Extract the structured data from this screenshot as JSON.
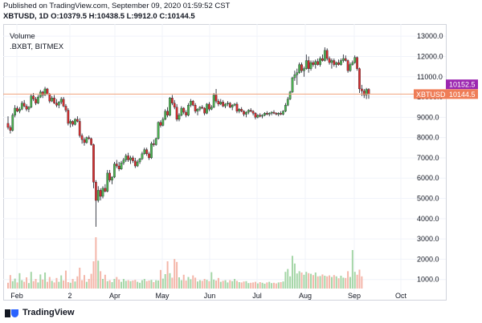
{
  "header": {
    "published": "Published on TradingView.com, September 09, 2020 01:59:52 CST",
    "symbol": "XBTUSD, 1D",
    "ohlc": "O:10379.5 H:10438.5 L:9912.0 C:10144.5"
  },
  "legend": {
    "volume": "Volume",
    "bxbt": ".BXBT, BITMEX"
  },
  "footer": {
    "brand": "TradingView"
  },
  "colors": {
    "up": "#26a69a",
    "down": "#ef5350",
    "candle_up": "#4caf50",
    "candle_down": "#d32f2f",
    "wick": "#131722",
    "price_line": "#f0a37e",
    "xbt_label": "#ef7d57",
    "bxbt_label": "#9c27b0"
  },
  "chart_data": {
    "type": "candlestick",
    "x_ticks": [
      "Feb",
      "2",
      "Apr",
      "May",
      "Jun",
      "Jul",
      "Aug",
      "Sep",
      "Oct"
    ],
    "y_ticks": [
      1000,
      2000,
      3000,
      4000,
      5000,
      6000,
      7000,
      8000,
      9000,
      10000,
      11000,
      12000,
      13000
    ],
    "y_tick_labels": [
      "1000.0",
      "2000.0",
      "3000.0",
      "4000.0",
      "5000.0",
      "6000.0",
      "7000.0",
      "8000.0",
      "9000.0",
      "10000.0",
      "11000.0",
      "12000.0",
      "13000.0"
    ],
    "ylim": [
      0,
      13600
    ],
    "xbtusd_label": "XBTUSD",
    "xbtusd_value": "10144.5",
    "bxbt_value": "10152.5",
    "last_price": 10144.5,
    "bxbt_price": 10152.5,
    "ohlc_series": [
      [
        8700,
        9050,
        8400,
        8500
      ],
      [
        8500,
        8600,
        8200,
        8350
      ],
      [
        8350,
        9200,
        8300,
        9100
      ],
      [
        9100,
        9600,
        9000,
        9450
      ],
      [
        9450,
        9550,
        9250,
        9300
      ],
      [
        9300,
        9500,
        9200,
        9400
      ],
      [
        9400,
        9800,
        9350,
        9700
      ],
      [
        9700,
        9850,
        9500,
        9550
      ],
      [
        9550,
        9650,
        9300,
        9400
      ],
      [
        9400,
        9550,
        9250,
        9500
      ],
      [
        9500,
        10150,
        9450,
        10050
      ],
      [
        10050,
        10200,
        9800,
        9900
      ],
      [
        9900,
        10000,
        9600,
        9700
      ],
      [
        9700,
        10100,
        9650,
        10000
      ],
      [
        10000,
        10350,
        9950,
        10250
      ],
      [
        10250,
        10300,
        9950,
        10100
      ],
      [
        10100,
        10500,
        10050,
        10400
      ],
      [
        10400,
        10450,
        10100,
        10150
      ],
      [
        10150,
        10200,
        9700,
        9800
      ],
      [
        9800,
        10050,
        9750,
        9950
      ],
      [
        9950,
        10100,
        9650,
        9700
      ],
      [
        9700,
        9900,
        9500,
        9600
      ],
      [
        9600,
        9800,
        9450,
        9750
      ],
      [
        9750,
        10000,
        9650,
        9900
      ],
      [
        9900,
        10000,
        9500,
        9550
      ],
      [
        9550,
        9650,
        9250,
        9350
      ],
      [
        9350,
        9450,
        8600,
        8700
      ],
      [
        8700,
        8900,
        8500,
        8800
      ],
      [
        8800,
        8850,
        8550,
        8650
      ],
      [
        8650,
        8950,
        8600,
        8900
      ],
      [
        8900,
        9050,
        8750,
        8800
      ],
      [
        8800,
        8950,
        8000,
        8100
      ],
      [
        8100,
        8200,
        7700,
        7900
      ],
      [
        7900,
        8000,
        7600,
        7750
      ],
      [
        7750,
        8050,
        7700,
        8000
      ],
      [
        8000,
        8100,
        7900,
        7950
      ],
      [
        7950,
        8000,
        7600,
        7650
      ],
      [
        7650,
        7700,
        5500,
        5800
      ],
      [
        5800,
        5900,
        3600,
        4900
      ],
      [
        4900,
        5600,
        4800,
        5400
      ],
      [
        5400,
        5500,
        4900,
        5100
      ],
      [
        5100,
        5600,
        5000,
        5500
      ],
      [
        5500,
        5700,
        5300,
        5350
      ],
      [
        5350,
        6400,
        5300,
        6250
      ],
      [
        6250,
        6400,
        5800,
        5900
      ],
      [
        5900,
        6100,
        5700,
        6050
      ],
      [
        6050,
        6800,
        6000,
        6700
      ],
      [
        6700,
        6900,
        6500,
        6600
      ],
      [
        6600,
        6800,
        6350,
        6450
      ],
      [
        6450,
        6850,
        6400,
        6750
      ],
      [
        6750,
        7000,
        6650,
        6900
      ],
      [
        6900,
        7200,
        6800,
        7100
      ],
      [
        7100,
        7250,
        6800,
        6900
      ],
      [
        6900,
        7100,
        6700,
        7000
      ],
      [
        7000,
        7100,
        6750,
        6850
      ],
      [
        6850,
        7000,
        6500,
        6600
      ],
      [
        6600,
        6900,
        6550,
        6800
      ],
      [
        6800,
        7000,
        6700,
        6950
      ],
      [
        6950,
        7300,
        6900,
        7200
      ],
      [
        7200,
        7500,
        7150,
        7400
      ],
      [
        7400,
        7500,
        7100,
        7200
      ],
      [
        7200,
        7300,
        6900,
        7000
      ],
      [
        7000,
        7800,
        6950,
        7700
      ],
      [
        7700,
        7900,
        7550,
        7650
      ],
      [
        7650,
        8000,
        7600,
        7950
      ],
      [
        7950,
        8800,
        7900,
        8750
      ],
      [
        8750,
        8850,
        8500,
        8600
      ],
      [
        8600,
        9000,
        8550,
        8900
      ],
      [
        8900,
        9400,
        8850,
        9300
      ],
      [
        9300,
        9500,
        9000,
        9100
      ],
      [
        9100,
        10000,
        9050,
        9950
      ],
      [
        9950,
        10100,
        9600,
        9700
      ],
      [
        9700,
        9850,
        9400,
        9500
      ],
      [
        9500,
        9650,
        8800,
        8900
      ],
      [
        8900,
        9200,
        8800,
        9100
      ],
      [
        9100,
        9550,
        9050,
        9450
      ],
      [
        9450,
        9500,
        9150,
        9250
      ],
      [
        9250,
        9350,
        9000,
        9100
      ],
      [
        9100,
        9700,
        9050,
        9600
      ],
      [
        9600,
        9900,
        9500,
        9800
      ],
      [
        9800,
        9850,
        9550,
        9600
      ],
      [
        9600,
        9700,
        9200,
        9300
      ],
      [
        9300,
        9450,
        9100,
        9400
      ],
      [
        9400,
        9550,
        9300,
        9500
      ],
      [
        9500,
        9600,
        9400,
        9450
      ],
      [
        9450,
        9500,
        9100,
        9200
      ],
      [
        9200,
        9700,
        9150,
        9650
      ],
      [
        9650,
        9750,
        9300,
        9400
      ],
      [
        9400,
        9600,
        9350,
        9500
      ],
      [
        9500,
        10200,
        9450,
        10100
      ],
      [
        10100,
        10400,
        9700,
        9800
      ],
      [
        9800,
        9900,
        9550,
        9650
      ],
      [
        9650,
        9900,
        9600,
        9750
      ],
      [
        9750,
        9850,
        9500,
        9550
      ],
      [
        9550,
        9700,
        9450,
        9650
      ],
      [
        9650,
        9800,
        9550,
        9700
      ],
      [
        9700,
        9750,
        9450,
        9500
      ],
      [
        9500,
        9650,
        9350,
        9600
      ],
      [
        9600,
        9700,
        9550,
        9650
      ],
      [
        9650,
        9750,
        9200,
        9300
      ],
      [
        9300,
        9450,
        9200,
        9400
      ],
      [
        9400,
        9500,
        9250,
        9300
      ],
      [
        9300,
        9350,
        9050,
        9150
      ],
      [
        9150,
        9300,
        9000,
        9250
      ],
      [
        9250,
        9400,
        9150,
        9350
      ],
      [
        9350,
        9450,
        9250,
        9300
      ],
      [
        9300,
        9350,
        9100,
        9200
      ],
      [
        9200,
        9250,
        8900,
        9000
      ],
      [
        9000,
        9150,
        8950,
        9100
      ],
      [
        9100,
        9200,
        9000,
        9050
      ],
      [
        9050,
        9150,
        8950,
        9100
      ],
      [
        9100,
        9250,
        9050,
        9200
      ],
      [
        9200,
        9300,
        9100,
        9150
      ],
      [
        9150,
        9250,
        9050,
        9200
      ],
      [
        9200,
        9300,
        9100,
        9250
      ],
      [
        9250,
        9350,
        9150,
        9200
      ],
      [
        9200,
        9250,
        9100,
        9150
      ],
      [
        9150,
        9250,
        9050,
        9200
      ],
      [
        9200,
        9300,
        9100,
        9150
      ],
      [
        9150,
        9350,
        9100,
        9300
      ],
      [
        9300,
        9700,
        9250,
        9600
      ],
      [
        9600,
        10000,
        9550,
        9900
      ],
      [
        9900,
        10300,
        9850,
        10250
      ],
      [
        10250,
        11000,
        10200,
        10950
      ],
      [
        10950,
        11300,
        10800,
        11100
      ],
      [
        11100,
        11400,
        10600,
        11200
      ],
      [
        11200,
        11700,
        11150,
        11600
      ],
      [
        11600,
        11700,
        11200,
        11300
      ],
      [
        11300,
        11500,
        11000,
        11400
      ],
      [
        11400,
        12100,
        11350,
        11800
      ],
      [
        11800,
        12000,
        11200,
        11400
      ],
      [
        11400,
        11800,
        11300,
        11700
      ],
      [
        11700,
        11800,
        11500,
        11600
      ],
      [
        11600,
        11850,
        11400,
        11750
      ],
      [
        11750,
        11900,
        11550,
        11600
      ],
      [
        11600,
        12000,
        11500,
        11900
      ],
      [
        11900,
        12100,
        11750,
        11800
      ],
      [
        11800,
        12450,
        11750,
        12300
      ],
      [
        12300,
        12400,
        11800,
        11900
      ],
      [
        11900,
        12000,
        11600,
        11700
      ],
      [
        11700,
        11900,
        11400,
        11800
      ],
      [
        11800,
        11900,
        11500,
        11600
      ],
      [
        11600,
        11750,
        11450,
        11700
      ],
      [
        11700,
        11850,
        11550,
        11600
      ],
      [
        11600,
        11900,
        11550,
        11800
      ],
      [
        11800,
        12100,
        11700,
        11900
      ],
      [
        11900,
        12050,
        11750,
        11800
      ],
      [
        11800,
        11850,
        11200,
        11300
      ],
      [
        11300,
        11700,
        11250,
        11600
      ],
      [
        11600,
        11800,
        11550,
        11700
      ],
      [
        11700,
        12050,
        11650,
        11950
      ],
      [
        11950,
        12000,
        11300,
        11400
      ],
      [
        11400,
        11450,
        10200,
        10400
      ],
      [
        10400,
        10600,
        10050,
        10300
      ],
      [
        10300,
        10400,
        9950,
        10100
      ],
      [
        10100,
        10450,
        9900,
        10380
      ],
      [
        10379.5,
        10438.5,
        9912,
        10144.5
      ]
    ],
    "volume_values": [
      180,
      420,
      230,
      310,
      190,
      480,
      260,
      210,
      350,
      170,
      520,
      230,
      300,
      190,
      440,
      280,
      500,
      210,
      360,
      240,
      190,
      330,
      210,
      410,
      250,
      560,
      200,
      180,
      300,
      220,
      380,
      650,
      260,
      420,
      210,
      300,
      460,
      850,
      1600,
      870,
      540,
      300,
      430,
      230,
      260,
      200,
      300,
      360,
      280,
      210,
      300,
      240,
      260,
      230,
      250,
      270,
      210,
      180,
      260,
      300,
      230,
      250,
      270,
      200,
      260,
      250,
      580,
      310,
      450,
      850,
      480,
      340,
      920,
      830,
      350,
      260,
      430,
      250,
      360,
      290,
      410,
      340,
      220,
      260,
      240,
      300,
      270,
      230,
      510,
      280,
      250,
      330,
      210,
      240,
      260,
      190,
      260,
      230,
      300,
      240,
      200,
      190,
      220,
      230,
      170,
      180,
      190,
      210,
      160,
      200,
      180,
      150,
      190,
      210,
      170,
      180,
      160,
      190,
      200,
      220,
      520,
      610,
      380,
      1020,
      780,
      470,
      540,
      500,
      430,
      520,
      480,
      460,
      420,
      500,
      380,
      390,
      440,
      400,
      380,
      410,
      360,
      420,
      380,
      320,
      400,
      340,
      330,
      540,
      360,
      1200,
      520,
      430,
      590,
      380
    ]
  }
}
